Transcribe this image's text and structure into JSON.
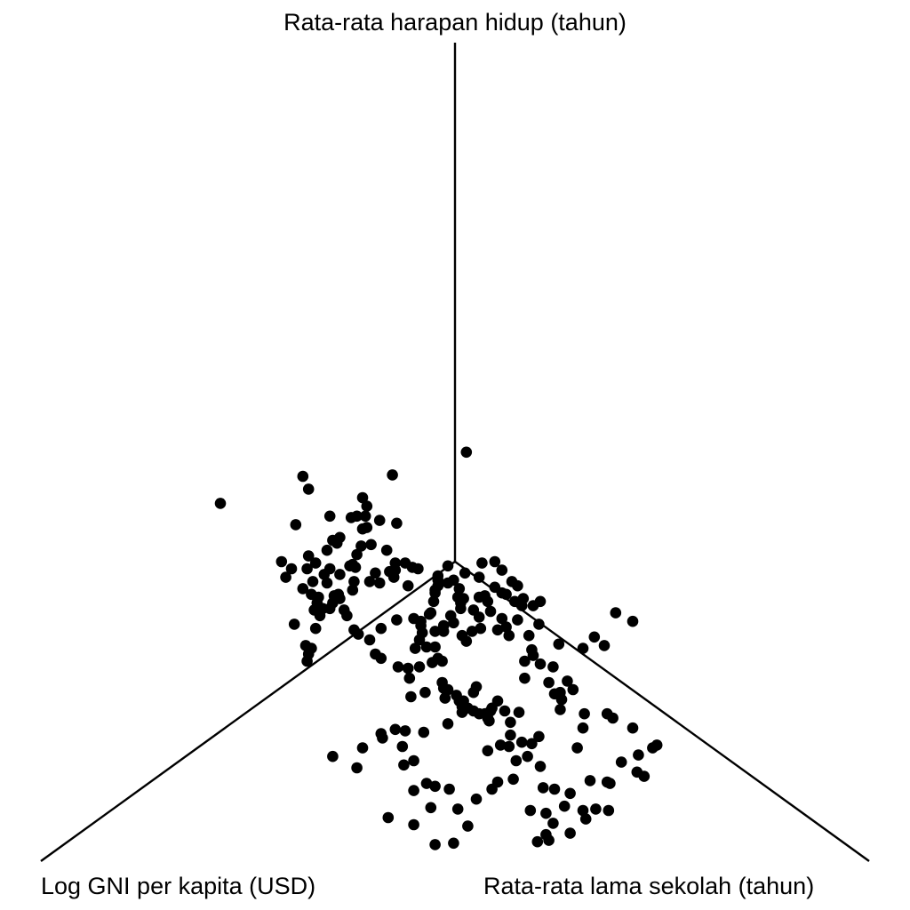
{
  "chart_data": {
    "type": "scatter",
    "projection": "3d-isometric",
    "title": "",
    "axes": {
      "y": {
        "label": "Rata-rata harapan hidup (tahun)",
        "direction": "up"
      },
      "x": {
        "label": "Log GNI per kapita (USD)",
        "direction": "lower-left"
      },
      "z": {
        "label": "Rata-rata lama sekolah (tahun)",
        "direction": "lower-right"
      }
    },
    "grid": false,
    "legend": "none",
    "point_color": "#000000",
    "line_color": "#000000",
    "points_note": "Values are approximate positions in projected plane units (origin = axes intersection, up = positive v).",
    "points": [
      [
        0.08,
        0.77
      ],
      [
        -1.65,
        0.41
      ],
      [
        -1.07,
        0.6
      ],
      [
        -1.03,
        0.51
      ],
      [
        -0.44,
        0.61
      ],
      [
        -0.65,
        0.45
      ],
      [
        -0.62,
        0.39
      ],
      [
        -0.88,
        0.32
      ],
      [
        -0.69,
        0.32
      ],
      [
        -0.63,
        0.32
      ],
      [
        -0.73,
        0.31
      ],
      [
        -1.12,
        0.26
      ],
      [
        -0.62,
        0.24
      ],
      [
        -0.65,
        0.23
      ],
      [
        -0.81,
        0.17
      ],
      [
        -0.86,
        0.15
      ],
      [
        -0.83,
        0.13
      ],
      [
        -0.66,
        0.11
      ],
      [
        -0.9,
        0.08
      ],
      [
        -0.69,
        0.05
      ],
      [
        -0.59,
        0.12
      ],
      [
        -0.48,
        0.08
      ],
      [
        -0.72,
        -0.02
      ],
      [
        -1.22,
        0.0
      ],
      [
        -0.98,
        -0.01
      ],
      [
        -1.04,
        -0.05
      ],
      [
        -1.15,
        -0.05
      ],
      [
        -1.03,
        0.04
      ],
      [
        -0.42,
        -0.01
      ],
      [
        -0.35,
        -0.01
      ],
      [
        -0.3,
        -0.04
      ],
      [
        -0.26,
        -0.05
      ],
      [
        -0.42,
        -0.06
      ],
      [
        -0.88,
        -0.05
      ],
      [
        -0.74,
        -0.03
      ],
      [
        -0.7,
        -0.04
      ],
      [
        -0.92,
        -0.09
      ],
      [
        -0.81,
        -0.09
      ],
      [
        -0.56,
        -0.08
      ],
      [
        -0.46,
        -0.07
      ],
      [
        -0.71,
        -0.14
      ],
      [
        -1.19,
        -0.11
      ],
      [
        -1.0,
        -0.14
      ],
      [
        -0.9,
        -0.15
      ],
      [
        -0.6,
        -0.14
      ],
      [
        -0.43,
        -0.11
      ],
      [
        -0.53,
        -0.15
      ],
      [
        -1.07,
        -0.19
      ],
      [
        -0.72,
        -0.2
      ],
      [
        -0.82,
        -0.23
      ],
      [
        -1.01,
        -0.23
      ],
      [
        -0.85,
        -0.24
      ],
      [
        -0.96,
        -0.25
      ],
      [
        -0.81,
        -0.26
      ],
      [
        -0.86,
        -0.29
      ],
      [
        -0.97,
        -0.29
      ],
      [
        -0.88,
        -0.33
      ],
      [
        -0.93,
        -0.33
      ],
      [
        -0.78,
        -0.34
      ],
      [
        -0.99,
        -0.34
      ],
      [
        -0.76,
        -0.38
      ],
      [
        -0.95,
        -0.38
      ],
      [
        -1.13,
        -0.44
      ],
      [
        -0.98,
        -0.47
      ],
      [
        -0.68,
        -0.51
      ],
      [
        -0.6,
        -0.55
      ],
      [
        -0.52,
        -0.47
      ],
      [
        -1.01,
        -0.61
      ],
      [
        -1.05,
        -0.59
      ],
      [
        -1.03,
        -0.65
      ],
      [
        -1.04,
        -0.7
      ],
      [
        -0.56,
        -0.65
      ],
      [
        -0.52,
        -0.68
      ],
      [
        -0.71,
        -0.48
      ],
      [
        -0.41,
        -0.41
      ],
      [
        -0.29,
        -0.4
      ],
      [
        -0.24,
        -0.42
      ],
      [
        -0.05,
        -0.03
      ],
      [
        -0.12,
        -0.1
      ],
      [
        -0.01,
        -0.13
      ],
      [
        -0.12,
        -0.13
      ],
      [
        -0.33,
        -0.17
      ],
      [
        -0.12,
        -0.17
      ],
      [
        -0.14,
        -0.2
      ],
      [
        -0.14,
        -0.22
      ],
      [
        -0.15,
        -0.28
      ],
      [
        -0.17,
        -0.36
      ],
      [
        -0.18,
        -0.37
      ],
      [
        -0.05,
        -0.15
      ],
      [
        0.03,
        -0.19
      ],
      [
        0.02,
        -0.25
      ],
      [
        0.06,
        -0.26
      ],
      [
        0.04,
        -0.29
      ],
      [
        0.04,
        -0.33
      ],
      [
        0.13,
        -0.34
      ],
      [
        0.17,
        -0.39
      ],
      [
        0.18,
        -0.47
      ],
      [
        0.12,
        -0.49
      ],
      [
        0.05,
        -0.52
      ],
      [
        0.08,
        -0.56
      ],
      [
        -0.03,
        -0.38
      ],
      [
        -0.01,
        -0.43
      ],
      [
        -0.08,
        -0.45
      ],
      [
        -0.08,
        -0.49
      ],
      [
        -0.14,
        -0.49
      ],
      [
        -0.24,
        -0.45
      ],
      [
        -0.23,
        -0.5
      ],
      [
        -0.25,
        -0.55
      ],
      [
        -0.28,
        -0.61
      ],
      [
        -0.2,
        -0.6
      ],
      [
        -0.14,
        -0.6
      ],
      [
        -0.12,
        -0.68
      ],
      [
        -0.09,
        -0.7
      ],
      [
        -0.16,
        -0.71
      ],
      [
        -0.25,
        -0.74
      ],
      [
        -0.33,
        -0.75
      ],
      [
        -0.4,
        -0.74
      ],
      [
        -0.32,
        -0.82
      ],
      [
        -0.21,
        -0.92
      ],
      [
        -0.31,
        -0.95
      ],
      [
        -0.09,
        -0.85
      ],
      [
        -0.08,
        -0.89
      ],
      [
        -0.05,
        -0.9
      ],
      [
        -0.07,
        -0.96
      ],
      [
        0.01,
        -0.94
      ],
      [
        0.03,
        -0.98
      ],
      [
        0.06,
        -0.98
      ],
      [
        0.05,
        -1.02
      ],
      [
        0.09,
        -1.03
      ],
      [
        0.05,
        -1.06
      ],
      [
        0.13,
        -1.05
      ],
      [
        0.17,
        -1.07
      ],
      [
        0.21,
        -1.07
      ],
      [
        0.26,
        -1.03
      ],
      [
        0.25,
        -1.05
      ],
      [
        0.23,
        -1.1
      ],
      [
        0.24,
        -1.12
      ],
      [
        0.39,
        -1.13
      ],
      [
        0.35,
        -1.05
      ],
      [
        0.45,
        -1.06
      ],
      [
        0.3,
        -0.98
      ],
      [
        0.13,
        -0.92
      ],
      [
        0.15,
        -0.88
      ],
      [
        -0.05,
        -1.14
      ],
      [
        -0.22,
        -1.2
      ],
      [
        -0.35,
        -1.19
      ],
      [
        -0.42,
        -1.18
      ],
      [
        -0.51,
        -1.24
      ],
      [
        -0.52,
        -1.21
      ],
      [
        -0.37,
        -1.3
      ],
      [
        -0.36,
        -1.43
      ],
      [
        -0.29,
        -1.4
      ],
      [
        -0.65,
        -1.31
      ],
      [
        -0.86,
        -1.37
      ],
      [
        -0.69,
        -1.45
      ],
      [
        -0.2,
        -1.56
      ],
      [
        -0.14,
        -1.58
      ],
      [
        -0.04,
        -1.6
      ],
      [
        -0.29,
        -1.61
      ],
      [
        -0.17,
        -1.73
      ],
      [
        -0.29,
        -1.85
      ],
      [
        -0.47,
        -1.8
      ],
      [
        -0.14,
        -1.99
      ],
      [
        -0.01,
        -1.98
      ],
      [
        0.09,
        -1.86
      ],
      [
        0.02,
        -1.74
      ],
      [
        0.15,
        -1.67
      ],
      [
        0.26,
        -1.6
      ],
      [
        0.3,
        -1.55
      ],
      [
        0.41,
        -1.53
      ],
      [
        0.43,
        -1.4
      ],
      [
        0.38,
        -1.3
      ],
      [
        0.39,
        -1.22
      ],
      [
        0.23,
        -1.33
      ],
      [
        0.32,
        -1.29
      ],
      [
        0.47,
        -1.27
      ],
      [
        0.54,
        -1.28
      ],
      [
        0.59,
        -1.23
      ],
      [
        0.51,
        -1.37
      ],
      [
        0.6,
        -1.44
      ],
      [
        0.62,
        -1.59
      ],
      [
        0.7,
        -1.6
      ],
      [
        0.53,
        -1.75
      ],
      [
        0.64,
        -1.77
      ],
      [
        0.69,
        -1.84
      ],
      [
        0.77,
        -1.72
      ],
      [
        0.81,
        -1.63
      ],
      [
        0.92,
        -1.81
      ],
      [
        0.66,
        -1.96
      ],
      [
        0.58,
        -1.97
      ],
      [
        0.64,
        -1.92
      ],
      [
        0.95,
        -1.54
      ],
      [
        0.9,
        -1.75
      ],
      [
        0.81,
        -1.91
      ],
      [
        1.09,
        -1.56
      ],
      [
        0.99,
        -1.74
      ],
      [
        1.08,
        -1.75
      ],
      [
        1.07,
        -1.55
      ],
      [
        1.17,
        -1.41
      ],
      [
        1.33,
        -1.51
      ],
      [
        1.29,
        -1.36
      ],
      [
        1.42,
        -1.29
      ],
      [
        1.25,
        -1.17
      ],
      [
        1.39,
        -1.31
      ],
      [
        0.91,
        -1.07
      ],
      [
        1.07,
        -1.07
      ],
      [
        1.11,
        -1.1
      ],
      [
        0.74,
        -1.04
      ],
      [
        0.9,
        -1.17
      ],
      [
        0.86,
        -1.31
      ],
      [
        0.74,
        -0.92
      ],
      [
        0.75,
        -0.97
      ],
      [
        0.6,
        -0.72
      ],
      [
        0.83,
        -0.9
      ],
      [
        1.28,
        -1.48
      ],
      [
        0.69,
        -0.74
      ],
      [
        0.79,
        -0.84
      ],
      [
        0.7,
        -0.93
      ],
      [
        0.66,
        -0.85
      ],
      [
        0.49,
        -0.82
      ],
      [
        0.55,
        -0.66
      ],
      [
        0.49,
        -0.7
      ],
      [
        0.54,
        -0.62
      ],
      [
        0.52,
        -0.52
      ],
      [
        0.36,
        -0.46
      ],
      [
        0.44,
        -0.41
      ],
      [
        0.38,
        -0.52
      ],
      [
        0.3,
        -0.48
      ],
      [
        0.23,
        -0.28
      ],
      [
        0.25,
        -0.35
      ],
      [
        0.33,
        -0.4
      ],
      [
        1.05,
        -0.59
      ],
      [
        0.98,
        -0.53
      ],
      [
        0.9,
        -0.61
      ],
      [
        0.73,
        -0.58
      ],
      [
        0.59,
        -0.44
      ],
      [
        0.47,
        -0.31
      ],
      [
        0.42,
        -0.28
      ],
      [
        0.48,
        -0.26
      ],
      [
        0.6,
        -0.28
      ],
      [
        0.55,
        -0.31
      ],
      [
        0.44,
        -0.17
      ],
      [
        0.4,
        -0.14
      ],
      [
        0.36,
        -0.23
      ],
      [
        0.33,
        -0.22
      ],
      [
        0.28,
        -0.18
      ],
      [
        0.21,
        -0.24
      ],
      [
        0.17,
        -0.25
      ],
      [
        0.17,
        -0.11
      ],
      [
        0.07,
        -0.08
      ],
      [
        1.13,
        -0.36
      ],
      [
        1.25,
        -0.42
      ],
      [
        0.33,
        -0.06
      ],
      [
        0.19,
        -0.01
      ],
      [
        0.28,
        0.0
      ],
      [
        -0.41,
        0.27
      ],
      [
        -0.53,
        0.29
      ]
    ]
  }
}
